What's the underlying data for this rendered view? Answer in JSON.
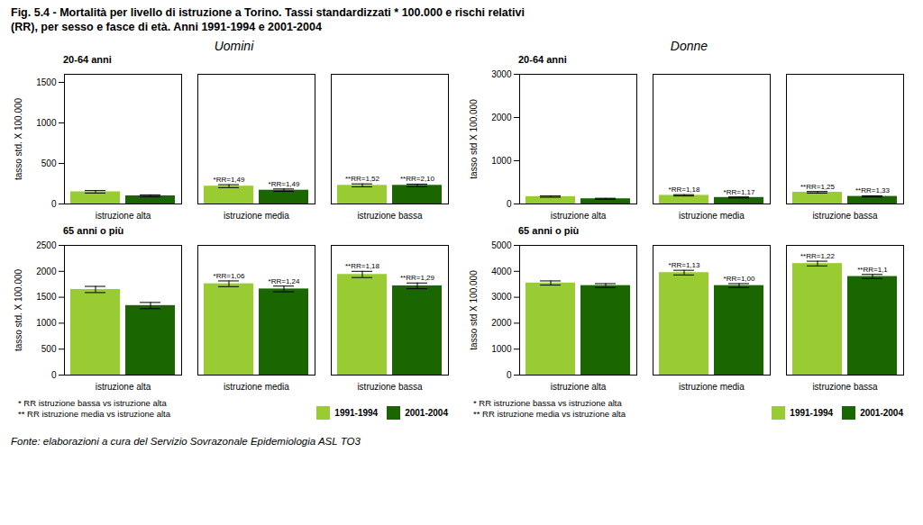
{
  "title": "Fig. 5.4 - Mortalità per livello di istruzione a Torino. Tassi standardizzati * 100.000 e rischi relativi\n(RR), per sesso e fasce di età. Anni 1991-1994 e 2001-2004",
  "footnote": "* RR istruzione bassa vs istruzione alta\n** RR istruzione media vs istruzione alta",
  "source": "Fonte: elaborazioni a cura del Servizio Sovrazonale Epidemiologia ASL TO3",
  "chart_data": [
    {
      "type": "bar",
      "subtitle": "Uomini",
      "title": "20-64 anni",
      "categories": [
        "istruzione alta",
        "istruzione media",
        "istruzione bassa"
      ],
      "ylabel": "tasso std. X 100.000",
      "ylim": [
        0,
        1600
      ],
      "yticks": [
        0,
        500,
        1000,
        1500
      ],
      "series": [
        {
          "name": "1991-1994",
          "color": "#99cc33",
          "values": [
            150,
            220,
            230
          ],
          "errors": [
            15,
            18,
            18
          ],
          "annotations": [
            null,
            "*RR=1,49",
            "**RR=1,52"
          ]
        },
        {
          "name": "2001-2004",
          "color": "#1a6600",
          "values": [
            100,
            170,
            230
          ],
          "errors": [
            12,
            15,
            15
          ],
          "annotations": [
            null,
            "*RR=1,49",
            "**RR=2,10"
          ]
        }
      ]
    },
    {
      "type": "bar",
      "subtitle": "Uomini",
      "title": "65 anni o più",
      "categories": [
        "istruzione alta",
        "istruzione media",
        "istruzione bassa"
      ],
      "ylabel": "tasso std. X 100.000",
      "ylim": [
        0,
        2500
      ],
      "yticks": [
        0,
        500,
        1000,
        1500,
        2000,
        2500
      ],
      "series": [
        {
          "name": "1991-1994",
          "color": "#99cc33",
          "values": [
            1650,
            1760,
            1940
          ],
          "errors": [
            60,
            55,
            60
          ],
          "annotations": [
            null,
            "*RR=1,06",
            "**RR=1,18"
          ]
        },
        {
          "name": "2001-2004",
          "color": "#1a6600",
          "values": [
            1340,
            1660,
            1720
          ],
          "errors": [
            60,
            55,
            55
          ],
          "annotations": [
            null,
            "*RR=1,24",
            "**RR=1,29"
          ]
        }
      ]
    },
    {
      "type": "bar",
      "subtitle": "Donne",
      "title": "20-64 anni",
      "categories": [
        "istruzione alta",
        "istruzione media",
        "istruzione bassa"
      ],
      "ylabel": "tasso std X 100.000",
      "ylim": [
        0,
        3000
      ],
      "yticks": [
        0,
        1000,
        2000,
        3000
      ],
      "series": [
        {
          "name": "1991-1994",
          "color": "#99cc33",
          "values": [
            170,
            200,
            270
          ],
          "errors": [
            15,
            15,
            18
          ],
          "annotations": [
            null,
            "*RR=1,18",
            "**RR=1,25"
          ]
        },
        {
          "name": "2001-2004",
          "color": "#1a6600",
          "values": [
            120,
            150,
            175
          ],
          "errors": [
            12,
            12,
            14
          ],
          "annotations": [
            null,
            "*RR=1,17",
            "**RR=1,33"
          ]
        }
      ]
    },
    {
      "type": "bar",
      "subtitle": "Donne",
      "title": "65 anni o più",
      "categories": [
        "istruzione alta",
        "istruzione media",
        "istruzione bassa"
      ],
      "ylabel": "tasso std X 100.000",
      "ylim": [
        0,
        5000
      ],
      "yticks": [
        0,
        1000,
        2000,
        3000,
        4000,
        5000
      ],
      "series": [
        {
          "name": "1991-1994",
          "color": "#99cc33",
          "values": [
            3550,
            3950,
            4300
          ],
          "errors": [
            80,
            90,
            90
          ],
          "annotations": [
            null,
            "*RR=1,13",
            "**RR=1,22"
          ]
        },
        {
          "name": "2001-2004",
          "color": "#1a6600",
          "values": [
            3450,
            3450,
            3800
          ],
          "errors": [
            75,
            75,
            80
          ],
          "annotations": [
            null,
            "*RR=1,00",
            "**RR=1,1"
          ]
        }
      ]
    }
  ]
}
